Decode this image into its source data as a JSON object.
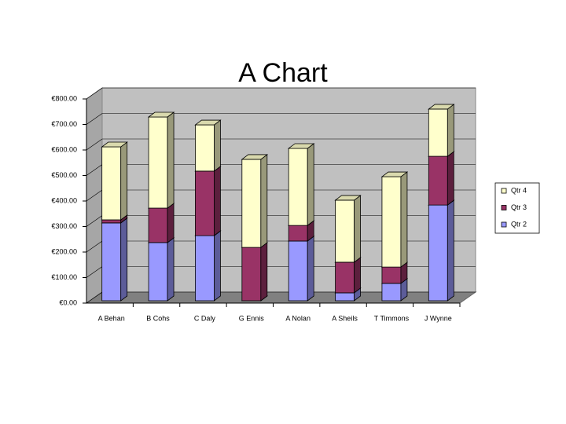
{
  "chart_data": {
    "type": "bar3d_stacked",
    "title": "A Chart",
    "categories": [
      "A Behan",
      "B Cohs",
      "C Daly",
      "G Ennis",
      "A Nolan",
      "A Sheils",
      "T Timmons",
      "J Wynne"
    ],
    "series": [
      {
        "name": "Qtr 2",
        "color": "#9999ff",
        "values": [
          305,
          228,
          255,
          0,
          234,
          31,
          68,
          375
        ]
      },
      {
        "name": "Qtr 3",
        "color": "#993366",
        "values": [
          12,
          135,
          253,
          209,
          61,
          120,
          64,
          191
        ]
      },
      {
        "name": "Qtr 4",
        "color": "#ffffcc",
        "values": [
          286,
          357,
          181,
          345,
          302,
          243,
          354,
          185
        ]
      }
    ],
    "ylim": [
      0,
      800
    ],
    "yticks": [
      {
        "value": 0,
        "label": "€0.00"
      },
      {
        "value": 100,
        "label": "€100.00"
      },
      {
        "value": 200,
        "label": "€200.00"
      },
      {
        "value": 300,
        "label": "€300.00"
      },
      {
        "value": 400,
        "label": "€400.00"
      },
      {
        "value": 500,
        "label": "€500.00"
      },
      {
        "value": 600,
        "label": "€600.00"
      },
      {
        "value": 700,
        "label": "€700.00"
      },
      {
        "value": 800,
        "label": "€800.00"
      }
    ],
    "grid": true,
    "legend": "right"
  }
}
